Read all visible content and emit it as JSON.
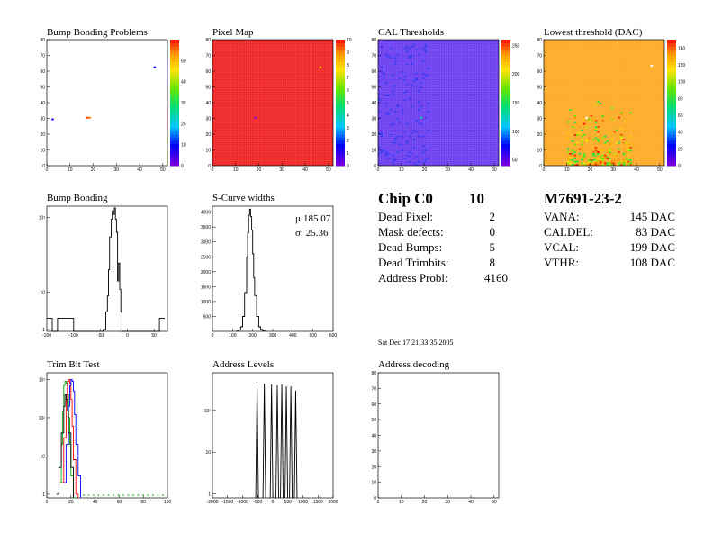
{
  "titles": {
    "bump_problems": "Bump Bonding Problems",
    "pixel_map": "Pixel Map",
    "cal_thresholds": "CAL Thresholds",
    "lowest_threshold": "Lowest threshold (DAC)",
    "bump_bonding": "Bump Bonding",
    "scurve_widths": "S-Curve widths",
    "trim_bit_test": "Trim Bit Test",
    "address_levels": "Address Levels",
    "address_decoding": "Address decoding"
  },
  "chip_summary": {
    "chip_label": "Chip C0",
    "chip_number": "10",
    "rows": [
      {
        "label": "Dead Pixel:",
        "value": "2"
      },
      {
        "label": "Mask defects:",
        "value": "0"
      },
      {
        "label": "Dead Bumps:",
        "value": "5"
      },
      {
        "label": "Dead Trimbits:",
        "value": "8"
      },
      {
        "label": "Address Probl:",
        "value": "4160"
      }
    ]
  },
  "module_summary": {
    "module_id": "M7691-23-2",
    "rows": [
      {
        "label": "VANA:",
        "value": "145 DAC"
      },
      {
        "label": "CALDEL:",
        "value": "83 DAC"
      },
      {
        "label": "VCAL:",
        "value": "199 DAC"
      },
      {
        "label": "VTHR:",
        "value": "108 DAC"
      }
    ]
  },
  "timestamp": "Sat Dec 17 21:33:35 2005",
  "colors": {
    "pixel_map_fill": "#ee2222",
    "cal_fill": "#6a3cf0",
    "lowest_fill": "#ffaa22",
    "trim_series": [
      "#00aa00",
      "#ff0000",
      "#0000ff",
      "#000000"
    ]
  },
  "chart_data": [
    {
      "type": "heatmap",
      "id": "bump_problems",
      "xlim": [
        0,
        52
      ],
      "ylim": [
        0,
        80
      ],
      "xticks": [
        "0",
        "10",
        "20",
        "30",
        "40",
        "50"
      ],
      "yticks": [
        "0",
        "10",
        "20",
        "30",
        "40",
        "50",
        "60",
        "70",
        "80"
      ],
      "zlim": [
        0,
        60
      ],
      "zticks": [
        "0",
        "10",
        "20",
        "30",
        "40",
        "50"
      ],
      "points": [
        {
          "x": 2,
          "y": 29,
          "z": 5
        },
        {
          "x": 17,
          "y": 30,
          "z": 57
        },
        {
          "x": 18,
          "y": 30,
          "z": 54
        },
        {
          "x": 46,
          "y": 62,
          "z": 8
        }
      ]
    },
    {
      "type": "heatmap",
      "id": "pixel_map",
      "xlim": [
        0,
        52
      ],
      "ylim": [
        0,
        80
      ],
      "xticks": [
        "0",
        "10",
        "20",
        "30",
        "40",
        "50"
      ],
      "yticks": [
        "0",
        "10",
        "20",
        "30",
        "40",
        "50",
        "60",
        "70",
        "80"
      ],
      "zlim": [
        0,
        10
      ],
      "zticks": [
        "0",
        "1",
        "2",
        "3",
        "4",
        "5",
        "6",
        "7",
        "8",
        "9",
        "10"
      ],
      "fill_value": 10,
      "points": [
        {
          "x": 18,
          "y": 30,
          "z": 0
        },
        {
          "x": 46,
          "y": 62,
          "z": 8
        }
      ]
    },
    {
      "type": "heatmap",
      "id": "cal_thresholds",
      "xlim": [
        0,
        52
      ],
      "ylim": [
        0,
        80
      ],
      "xticks": [
        "0",
        "10",
        "20",
        "30",
        "40",
        "50"
      ],
      "yticks": [
        "0",
        "10",
        "20",
        "30",
        "40",
        "50",
        "60",
        "70",
        "80"
      ],
      "zlim": [
        40,
        260
      ],
      "zticks": [
        "50",
        "100",
        "150",
        "200",
        "250"
      ],
      "fill_value": 60,
      "points": [
        {
          "x": 18,
          "y": 30,
          "z": 130
        }
      ]
    },
    {
      "type": "heatmap",
      "id": "lowest_threshold",
      "xlim": [
        0,
        52
      ],
      "ylim": [
        0,
        80
      ],
      "xticks": [
        "0",
        "10",
        "20",
        "30",
        "40",
        "50"
      ],
      "yticks": [
        "0",
        "10",
        "20",
        "30",
        "40",
        "50",
        "60",
        "70",
        "80"
      ],
      "zlim": [
        0,
        150
      ],
      "zticks": [
        "0",
        "20",
        "40",
        "60",
        "80",
        "100",
        "120",
        "140"
      ],
      "fill_value": 115,
      "points": [
        {
          "x": 18,
          "y": 30,
          "z": 0
        },
        {
          "x": 46,
          "y": 63,
          "z": 0
        }
      ]
    },
    {
      "type": "line",
      "id": "bump_bonding",
      "yscale": "log",
      "xlim": [
        -150,
        75
      ],
      "ylim": [
        0.9,
        2000
      ],
      "xticks": [
        -150,
        -100,
        -50,
        0,
        50
      ],
      "yticks": [
        {
          "v": 1,
          "label": "1"
        },
        {
          "v": 10,
          "label": "10"
        },
        {
          "v": 1000,
          "label": "10³"
        }
      ],
      "x": [
        -150,
        -140,
        -130,
        -120,
        -110,
        -100,
        -90,
        -80,
        -70,
        -60,
        -50,
        -45,
        -40,
        -37,
        -35,
        -33,
        -30,
        -28,
        -26,
        -24,
        -22,
        -20,
        -18,
        -16,
        -14,
        -12,
        -10,
        -5,
        0,
        10,
        20,
        30,
        40,
        50,
        60,
        70
      ],
      "y": [
        2,
        0,
        2,
        2,
        2,
        0,
        0,
        0,
        0,
        0,
        0,
        1,
        3,
        8,
        40,
        300,
        900,
        1500,
        1200,
        1800,
        900,
        400,
        20,
        60,
        12,
        3,
        0,
        0,
        0,
        0,
        0,
        0,
        0,
        0,
        2,
        2
      ]
    },
    {
      "type": "line",
      "id": "scurve_widths",
      "xlim": [
        0,
        600
      ],
      "ylim": [
        0,
        4200
      ],
      "xticks": [
        0,
        100,
        200,
        300,
        400,
        500,
        600
      ],
      "yticks": [
        {
          "v": 500,
          "label": "500"
        },
        {
          "v": 1000,
          "label": "1000"
        },
        {
          "v": 1500,
          "label": "1500"
        },
        {
          "v": 2000,
          "label": "2000"
        },
        {
          "v": 2500,
          "label": "2500"
        },
        {
          "v": 3000,
          "label": "3000"
        },
        {
          "v": 3500,
          "label": "3500"
        },
        {
          "v": 4000,
          "label": "4000"
        }
      ],
      "x": [
        120,
        130,
        140,
        150,
        160,
        170,
        175,
        180,
        185,
        190,
        195,
        200,
        205,
        210,
        220,
        230,
        240,
        250,
        260
      ],
      "y": [
        10,
        40,
        150,
        500,
        1300,
        2500,
        3300,
        3900,
        4100,
        3850,
        3400,
        2600,
        1800,
        1200,
        500,
        150,
        60,
        20,
        5
      ],
      "stats": {
        "mu": "μ:185.07",
        "sigma": "σ: 25.36"
      }
    },
    {
      "type": "line",
      "id": "trim_bit_test",
      "yscale": "log",
      "xlim": [
        0,
        100
      ],
      "ylim": [
        0.8,
        1500
      ],
      "xticks": [
        0,
        20,
        40,
        60,
        80,
        100
      ],
      "yticks": [
        {
          "v": 1,
          "label": "1"
        },
        {
          "v": 10,
          "label": "10"
        },
        {
          "v": 100,
          "label": "10²"
        },
        {
          "v": 1000,
          "label": "10³"
        }
      ],
      "series": [
        {
          "x": [
            10,
            12,
            13,
            14,
            15,
            16,
            17,
            18,
            19,
            20,
            22,
            24,
            30,
            40,
            50,
            60,
            70,
            80,
            90,
            100
          ],
          "y": [
            2,
            20,
            150,
            700,
            900,
            800,
            400,
            100,
            20,
            3,
            0,
            0,
            1,
            1,
            1,
            1,
            1,
            1,
            1,
            1
          ]
        },
        {
          "x": [
            12,
            14,
            16,
            17,
            18,
            19,
            20,
            21,
            22,
            24,
            26
          ],
          "y": [
            2,
            30,
            300,
            900,
            1000,
            800,
            300,
            60,
            8,
            1,
            0
          ]
        },
        {
          "x": [
            14,
            16,
            18,
            19,
            20,
            21,
            22,
            23,
            24,
            26,
            28
          ],
          "y": [
            2,
            20,
            200,
            700,
            1000,
            900,
            500,
            120,
            20,
            3,
            0
          ]
        },
        {
          "x": [
            8,
            10,
            12,
            14,
            15,
            16,
            17,
            18,
            20,
            22
          ],
          "y": [
            1,
            5,
            40,
            200,
            400,
            300,
            150,
            40,
            5,
            0
          ]
        }
      ]
    },
    {
      "type": "bar",
      "id": "address_levels",
      "yscale": "log",
      "xlim": [
        -2000,
        2000
      ],
      "ylim": [
        0.8,
        800
      ],
      "xticks": [
        -2000,
        -1500,
        -1000,
        -500,
        0,
        500,
        1000,
        1500,
        2000
      ],
      "yticks": [
        {
          "v": 1,
          "label": "1"
        },
        {
          "v": 10,
          "label": "10"
        },
        {
          "v": 100,
          "label": "10²"
        }
      ],
      "x": [
        -520,
        -280,
        -40,
        150,
        300,
        450,
        600,
        760
      ],
      "values": [
        420,
        440,
        420,
        400,
        420,
        380,
        380,
        300
      ]
    },
    {
      "type": "heatmap",
      "id": "address_decoding",
      "xlim": [
        0,
        52
      ],
      "ylim": [
        0,
        80
      ],
      "xticks": [
        "0",
        "10",
        "20",
        "30",
        "40",
        "50"
      ],
      "yticks": [
        "0",
        "10",
        "20",
        "30",
        "40",
        "50",
        "60",
        "70",
        "80"
      ],
      "points": []
    }
  ]
}
